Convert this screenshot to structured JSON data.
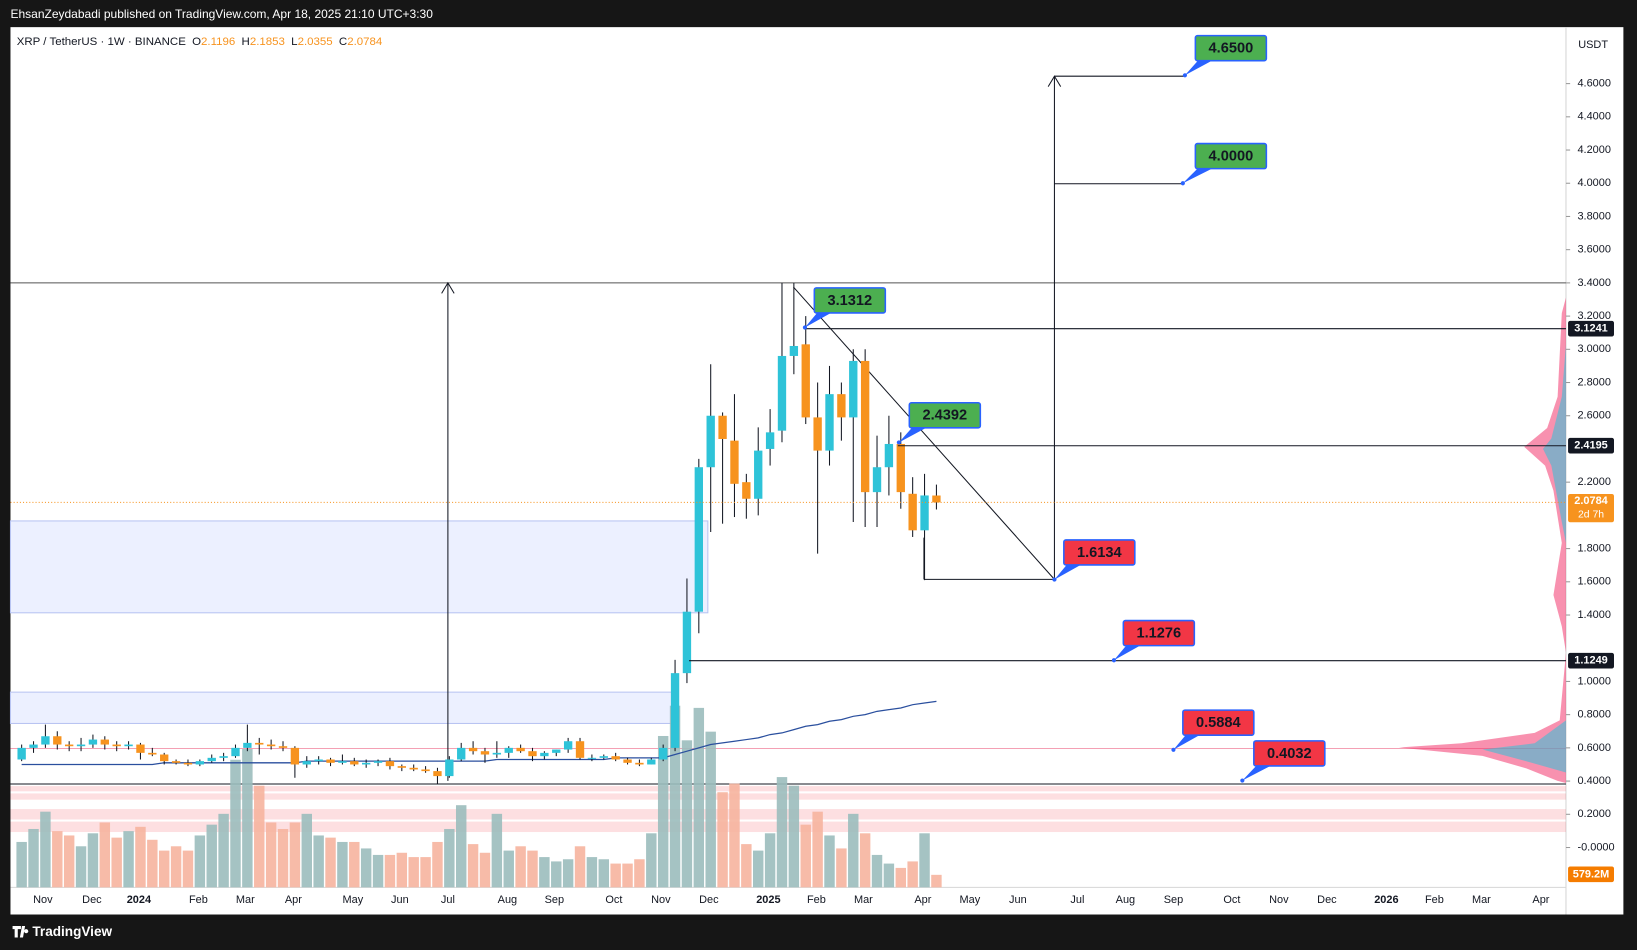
{
  "header": {
    "publisher": "EhsanZeydabadi published on TradingView.com, Apr 18, 2025 21:10 UTC+3:30",
    "footer": "TradingView"
  },
  "chart_data": {
    "type": "candlestick",
    "symbol": "XRP / TetherUS · 1W · BINANCE",
    "ohlc_labels": [
      "O",
      "H",
      "L",
      "C"
    ],
    "currency": "USDT",
    "up_color": "#2ec3d8",
    "down_color": "#f7931e",
    "volume_up_color": "#9bbcbc",
    "volume_down_color": "#f6b49f",
    "ma_color": "#2a4f9e",
    "ylim": [
      -0.24,
      4.94
    ],
    "yticks": [
      {
        "value": 4.6,
        "label": "4.6000"
      },
      {
        "value": 4.4,
        "label": "4.4000"
      },
      {
        "value": 4.2,
        "label": "4.2000"
      },
      {
        "value": 4.0,
        "label": "4.0000"
      },
      {
        "value": 3.8,
        "label": "3.8000"
      },
      {
        "value": 3.6,
        "label": "3.6000"
      },
      {
        "value": 3.4,
        "label": "3.4000"
      },
      {
        "value": 3.2,
        "label": "3.2000"
      },
      {
        "value": 3.0,
        "label": "3.0000"
      },
      {
        "value": 2.8,
        "label": "2.8000"
      },
      {
        "value": 2.6,
        "label": "2.6000"
      },
      {
        "value": 2.2,
        "label": "2.2000"
      },
      {
        "value": 1.8,
        "label": "1.8000"
      },
      {
        "value": 1.6,
        "label": "1.6000"
      },
      {
        "value": 1.4,
        "label": "1.4000"
      },
      {
        "value": 1.0,
        "label": "1.0000"
      },
      {
        "value": 0.8,
        "label": "0.8000"
      },
      {
        "value": 0.6,
        "label": "0.6000"
      },
      {
        "value": 0.4,
        "label": "0.4000"
      },
      {
        "value": 0.2,
        "label": "0.2000"
      },
      {
        "value": 0,
        "label": "-0.0000"
      }
    ],
    "time_labels": [
      "Nov",
      "Dec",
      "2024",
      "Feb",
      "Mar",
      "Apr",
      "May",
      "Jun",
      "Jul",
      "Aug",
      "Sep",
      "Oct",
      "Nov",
      "Dec",
      "2025",
      "Feb",
      "Mar",
      "Apr",
      "May",
      "Jun",
      "Jul",
      "Aug",
      "Sep",
      "Oct",
      "Nov",
      "Dec",
      "2026",
      "Feb",
      "Mar",
      "Apr"
    ],
    "candles": [
      [
        0.53,
        0.62,
        0.52,
        0.6
      ],
      [
        0.6,
        0.64,
        0.57,
        0.62
      ],
      [
        0.62,
        0.74,
        0.6,
        0.67
      ],
      [
        0.67,
        0.7,
        0.59,
        0.62
      ],
      [
        0.62,
        0.64,
        0.58,
        0.61
      ],
      [
        0.61,
        0.66,
        0.58,
        0.62
      ],
      [
        0.62,
        0.68,
        0.6,
        0.65
      ],
      [
        0.65,
        0.67,
        0.59,
        0.62
      ],
      [
        0.62,
        0.64,
        0.58,
        0.61
      ],
      [
        0.61,
        0.64,
        0.59,
        0.62
      ],
      [
        0.62,
        0.63,
        0.53,
        0.57
      ],
      [
        0.57,
        0.6,
        0.55,
        0.56
      ],
      [
        0.56,
        0.57,
        0.5,
        0.52
      ],
      [
        0.52,
        0.53,
        0.5,
        0.51
      ],
      [
        0.51,
        0.53,
        0.49,
        0.5
      ],
      [
        0.5,
        0.53,
        0.49,
        0.52
      ],
      [
        0.52,
        0.56,
        0.51,
        0.54
      ],
      [
        0.54,
        0.57,
        0.52,
        0.55
      ],
      [
        0.55,
        0.62,
        0.54,
        0.6
      ],
      [
        0.6,
        0.74,
        0.58,
        0.63
      ],
      [
        0.63,
        0.66,
        0.56,
        0.62
      ],
      [
        0.62,
        0.65,
        0.59,
        0.61
      ],
      [
        0.61,
        0.64,
        0.58,
        0.6
      ],
      [
        0.6,
        0.61,
        0.42,
        0.5
      ],
      [
        0.5,
        0.55,
        0.48,
        0.52
      ],
      [
        0.52,
        0.55,
        0.5,
        0.53
      ],
      [
        0.53,
        0.54,
        0.49,
        0.51
      ],
      [
        0.51,
        0.56,
        0.5,
        0.52
      ],
      [
        0.52,
        0.54,
        0.49,
        0.5
      ],
      [
        0.5,
        0.53,
        0.48,
        0.51
      ],
      [
        0.51,
        0.53,
        0.49,
        0.52
      ],
      [
        0.52,
        0.54,
        0.47,
        0.49
      ],
      [
        0.49,
        0.5,
        0.46,
        0.48
      ],
      [
        0.48,
        0.5,
        0.46,
        0.47
      ],
      [
        0.47,
        0.49,
        0.45,
        0.46
      ],
      [
        0.46,
        0.48,
        0.38,
        0.43
      ],
      [
        0.43,
        0.55,
        0.42,
        0.53
      ],
      [
        0.53,
        0.63,
        0.52,
        0.6
      ],
      [
        0.6,
        0.64,
        0.56,
        0.58
      ],
      [
        0.58,
        0.6,
        0.51,
        0.56
      ],
      [
        0.56,
        0.64,
        0.54,
        0.57
      ],
      [
        0.57,
        0.61,
        0.54,
        0.6
      ],
      [
        0.6,
        0.62,
        0.57,
        0.58
      ],
      [
        0.58,
        0.6,
        0.52,
        0.55
      ],
      [
        0.55,
        0.58,
        0.53,
        0.57
      ],
      [
        0.57,
        0.59,
        0.55,
        0.59
      ],
      [
        0.59,
        0.66,
        0.57,
        0.64
      ],
      [
        0.64,
        0.66,
        0.53,
        0.54
      ],
      [
        0.54,
        0.56,
        0.52,
        0.54
      ],
      [
        0.54,
        0.56,
        0.53,
        0.55
      ],
      [
        0.55,
        0.57,
        0.52,
        0.53
      ],
      [
        0.53,
        0.54,
        0.5,
        0.51
      ],
      [
        0.51,
        0.53,
        0.49,
        0.5
      ],
      [
        0.5,
        0.54,
        0.5,
        0.53
      ],
      [
        0.53,
        0.62,
        0.52,
        0.6
      ],
      [
        0.6,
        1.13,
        0.58,
        1.05
      ],
      [
        1.05,
        1.62,
        0.99,
        1.42
      ],
      [
        1.42,
        2.34,
        1.29,
        2.29
      ],
      [
        2.29,
        2.91,
        1.9,
        2.6
      ],
      [
        2.6,
        2.62,
        1.95,
        2.46
      ],
      [
        2.45,
        2.73,
        1.99,
        2.19
      ],
      [
        2.2,
        2.25,
        1.98,
        2.1
      ],
      [
        2.1,
        2.53,
        2.0,
        2.39
      ],
      [
        2.4,
        2.64,
        2.3,
        2.5
      ],
      [
        2.51,
        3.4,
        2.44,
        2.96
      ],
      [
        2.96,
        3.4,
        2.85,
        3.02
      ],
      [
        3.03,
        3.2,
        2.55,
        2.59
      ],
      [
        2.59,
        2.8,
        1.77,
        2.39
      ],
      [
        2.39,
        2.9,
        2.3,
        2.73
      ],
      [
        2.73,
        2.8,
        2.45,
        2.59
      ],
      [
        2.59,
        3.0,
        1.96,
        2.93
      ],
      [
        2.93,
        3.0,
        1.93,
        2.14
      ],
      [
        2.14,
        2.48,
        1.93,
        2.29
      ],
      [
        2.29,
        2.6,
        2.12,
        2.43
      ],
      [
        2.43,
        2.5,
        2.04,
        2.14
      ],
      [
        2.13,
        2.23,
        1.87,
        1.91
      ],
      [
        1.91,
        2.25,
        1.61,
        2.12
      ],
      [
        2.1196,
        2.1853,
        2.0355,
        2.0784
      ]
    ],
    "volume": [
      2100,
      2700,
      3500,
      2600,
      2400,
      1900,
      2500,
      3000,
      2300,
      2600,
      2800,
      2200,
      1700,
      1900,
      1700,
      2400,
      2900,
      3400,
      5900,
      6400,
      4700,
      3000,
      2700,
      3000,
      3400,
      2400,
      2300,
      2100,
      2100,
      1800,
      1500,
      1500,
      1600,
      1400,
      1400,
      2100,
      2700,
      3800,
      2000,
      1600,
      3400,
      1700,
      1900,
      1700,
      1400,
      1200,
      1300,
      1900,
      1400,
      1300,
      1100,
      1100,
      1300,
      2500,
      7000,
      8400,
      6800,
      8300,
      7200,
      4400,
      4800,
      2000,
      1700,
      2500,
      5100,
      4700,
      2900,
      3500,
      2400,
      1800,
      3400,
      2500,
      1500,
      1100,
      900,
      1200,
      2500,
      579.2
    ],
    "volume_value_labels": {
      "77": "579.2M"
    },
    "ma": [
      0.5,
      0.5,
      0.5,
      0.5,
      0.5,
      0.5,
      0.5,
      0.5,
      0.5,
      0.5,
      0.5,
      0.5,
      0.51,
      0.51,
      0.51,
      0.51,
      0.51,
      0.51,
      0.51,
      0.51,
      0.51,
      0.51,
      0.51,
      0.51,
      0.52,
      0.52,
      0.52,
      0.52,
      0.52,
      0.52,
      0.52,
      0.52,
      0.52,
      0.52,
      0.52,
      0.52,
      0.52,
      0.52,
      0.52,
      0.52,
      0.53,
      0.53,
      0.53,
      0.53,
      0.53,
      0.53,
      0.53,
      0.53,
      0.53,
      0.53,
      0.54,
      0.54,
      0.54,
      0.54,
      0.54,
      0.56,
      0.58,
      0.6,
      0.62,
      0.63,
      0.64,
      0.65,
      0.66,
      0.68,
      0.69,
      0.71,
      0.73,
      0.74,
      0.76,
      0.77,
      0.79,
      0.8,
      0.82,
      0.83,
      0.84,
      0.86,
      0.87,
      0.88
    ],
    "annotations": [
      {
        "value": 4.65,
        "label": "4.6500",
        "color": "#4caf50"
      },
      {
        "value": 4.0,
        "label": "4.0000",
        "color": "#4caf50"
      },
      {
        "value": 3.1312,
        "label": "3.1312",
        "color": "#4caf50"
      },
      {
        "value": 2.4392,
        "label": "2.4392",
        "color": "#4caf50"
      },
      {
        "value": 1.6134,
        "label": "1.6134",
        "color": "#f23645"
      },
      {
        "value": 1.1276,
        "label": "1.1276",
        "color": "#f23645"
      },
      {
        "value": 0.5884,
        "label": "0.5884",
        "color": "#f23645"
      },
      {
        "value": 0.4032,
        "label": "0.4032",
        "color": "#f23645"
      }
    ],
    "level_tags": [
      {
        "value": 3.1241,
        "label": "3.1241"
      },
      {
        "value": 2.4195,
        "label": "2.4195"
      },
      {
        "value": 1.1249,
        "label": "1.1249"
      }
    ],
    "countdown": "2d 7h"
  }
}
